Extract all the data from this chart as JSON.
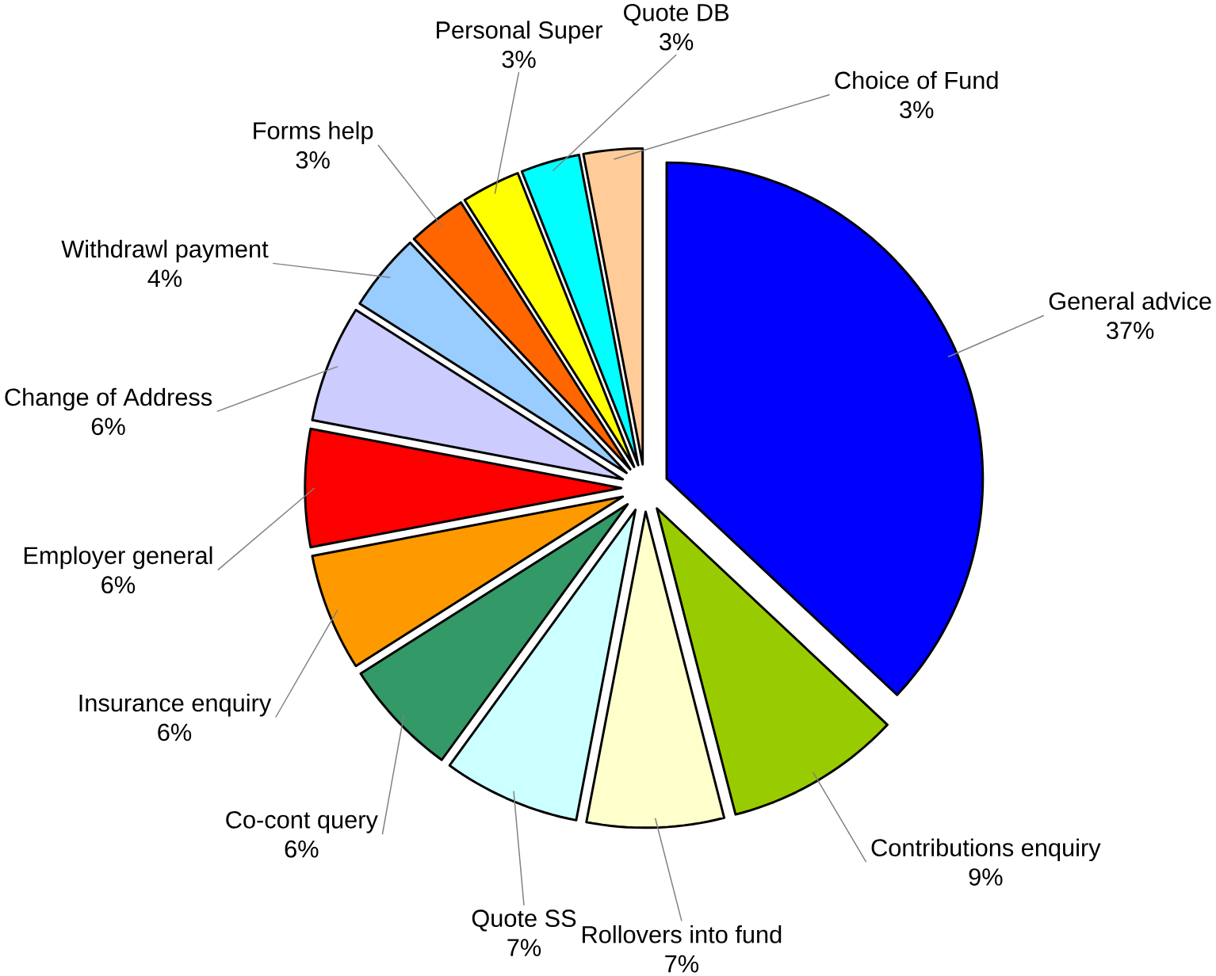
{
  "chart_data": {
    "type": "pie",
    "categories": [
      "General advice",
      "Contributions enquiry",
      "Rollovers into fund",
      "Quote SS",
      "Co-cont query",
      "Insurance enquiry",
      "Employer general",
      "Change of Address",
      "Withdrawl payment",
      "Forms help",
      "Personal Super",
      "Quote DB",
      "Choice of Fund"
    ],
    "values": [
      37,
      9,
      7,
      7,
      6,
      6,
      6,
      6,
      4,
      3,
      3,
      3,
      3
    ],
    "value_labels": [
      "37%",
      "9%",
      "7%",
      "7%",
      "6%",
      "6%",
      "6%",
      "6%",
      "4%",
      "3%",
      "3%",
      "3%",
      "3%"
    ],
    "colors": [
      "#0000ff",
      "#99cc00",
      "#ffffcc",
      "#ccffff",
      "#339966",
      "#ff9900",
      "#ff0000",
      "#ccccff",
      "#99ccff",
      "#ff6600",
      "#ffff00",
      "#00ffff",
      "#ffcc99"
    ]
  }
}
